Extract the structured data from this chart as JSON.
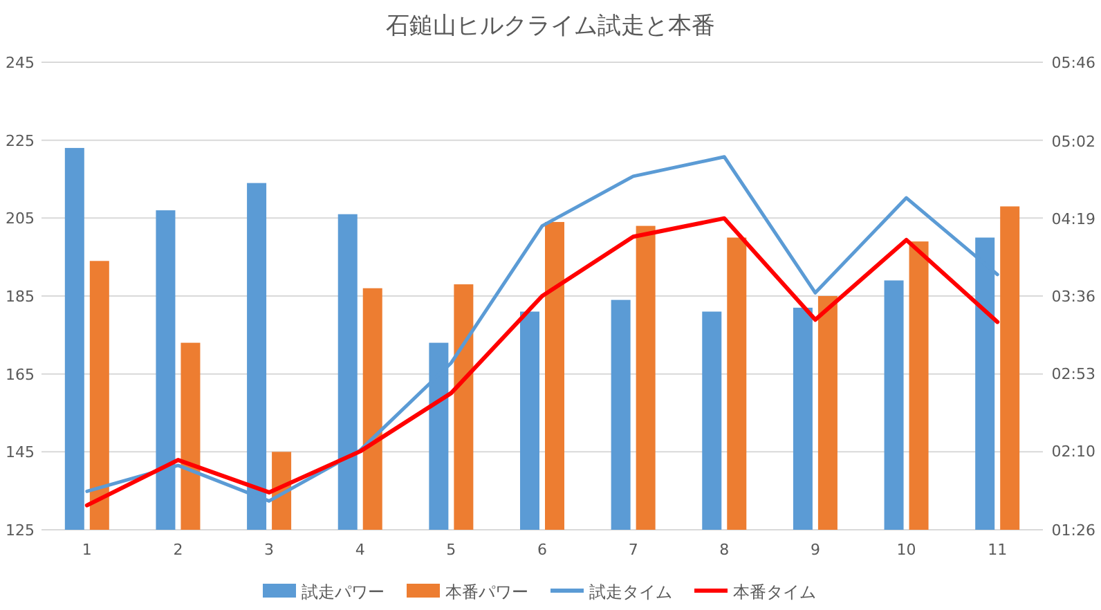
{
  "chart_data": {
    "type": "bar",
    "title": "石鎚山ヒルクライム試走と本番",
    "categories": [
      "1",
      "2",
      "3",
      "4",
      "5",
      "6",
      "7",
      "8",
      "9",
      "10",
      "11"
    ],
    "series": [
      {
        "name": "試走パワー",
        "color": "#5b9bd5",
        "values": [
          223,
          207,
          214,
          206,
          173,
          181,
          184,
          181,
          182,
          189,
          200
        ]
      },
      {
        "name": "本番パワー",
        "color": "#ed7d31",
        "values": [
          194,
          173,
          145,
          187,
          188,
          204,
          203,
          200,
          185,
          199,
          208
        ]
      },
      {
        "name": "試走タイム",
        "type": "line",
        "axis": "y2",
        "color": "#5b9bd5",
        "values": [
          1.79,
          2.03,
          1.7,
          2.17,
          2.98,
          4.25,
          4.71,
          4.89,
          3.63,
          4.51,
          3.8
        ]
      },
      {
        "name": "本番タイム",
        "type": "line",
        "axis": "y2",
        "color": "#ff0000",
        "values": [
          1.66,
          2.08,
          1.78,
          2.16,
          2.7,
          3.6,
          4.15,
          4.32,
          3.38,
          4.12,
          3.36
        ]
      }
    ],
    "ylim": [
      125,
      245
    ],
    "yticks": [
      125,
      145,
      165,
      185,
      205,
      225,
      245
    ],
    "y2lim": [
      1.4333,
      5.7667
    ],
    "y2ticks": [
      {
        "value": 1.4333,
        "label": "01:26"
      },
      {
        "value": 2.1667,
        "label": "02:10"
      },
      {
        "value": 2.8833,
        "label": "02:53"
      },
      {
        "value": 3.6,
        "label": "03:36"
      },
      {
        "value": 4.3167,
        "label": "04:19"
      },
      {
        "value": 5.0333,
        "label": "05:02"
      },
      {
        "value": 5.7667,
        "label": "05:46"
      }
    ],
    "grid": "y",
    "legend": "bottom"
  }
}
